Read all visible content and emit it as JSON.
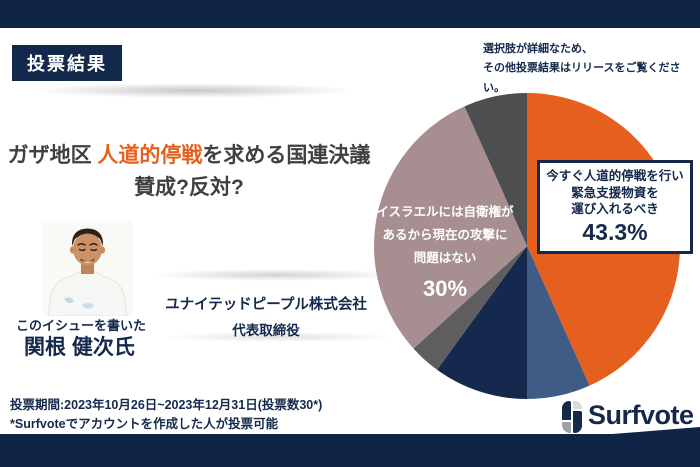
{
  "header": {
    "badge": "投票結果",
    "note_line1": "選択肢が詳細なため、",
    "note_line2": "その他投票結果はリリースをご覧ください。"
  },
  "title": {
    "prefix": "ガザ地区 ",
    "highlight": "人道的停戦",
    "suffix": "を求める国連決議",
    "line2": "賛成?反対?"
  },
  "author": {
    "caption": "このイシューを書いた",
    "name": "関根 健次氏",
    "company": "ユナイテッドピープル株式会社",
    "role": "代表取締役"
  },
  "footer": {
    "period": "投票期間:2023年10月26日~2023年12月31日(投票数30*)",
    "note": "*Surfvoteでアカウントを作成した人が投票可能"
  },
  "brand": {
    "logo_text": "Surfvote",
    "navy": "#15294B"
  },
  "colors": {
    "bar_navy": "#102445",
    "accent_orange": "#E5601F",
    "title_gray": "#404040",
    "text_navy": "#14294C"
  },
  "chart_data": {
    "type": "pie",
    "title": "投票結果",
    "total_votes": 30,
    "start_angle_deg": 0,
    "direction": "clockwise",
    "legend_position": "on-chart",
    "slices": [
      {
        "label": "今すぐ人道的停戦を行い緊急支援物資を運び入れるべき",
        "value": 43.3,
        "color": "#E5601F"
      },
      {
        "label": "",
        "value": 6.7,
        "color": "#3E5C86"
      },
      {
        "label": "",
        "value": 10.0,
        "color": "#14294D"
      },
      {
        "label": "",
        "value": 3.3,
        "color": "#5E5E60"
      },
      {
        "label": "イスラエルには自衛権があるから現在の攻撃に問題はない",
        "value": 30.0,
        "color": "#A78E90"
      },
      {
        "label": "",
        "value": 6.7,
        "color": "#4C4E50"
      }
    ],
    "callout": {
      "lines": [
        "今すぐ人道的停戦を行い",
        "緊急支援物資を",
        "運び入れるべき"
      ],
      "pct": "43.3%"
    },
    "onchart_label": {
      "lines": [
        "イスラエルには自衛権が",
        "あるから現在の攻撃に",
        "問題はない"
      ],
      "pct": "30%"
    }
  }
}
